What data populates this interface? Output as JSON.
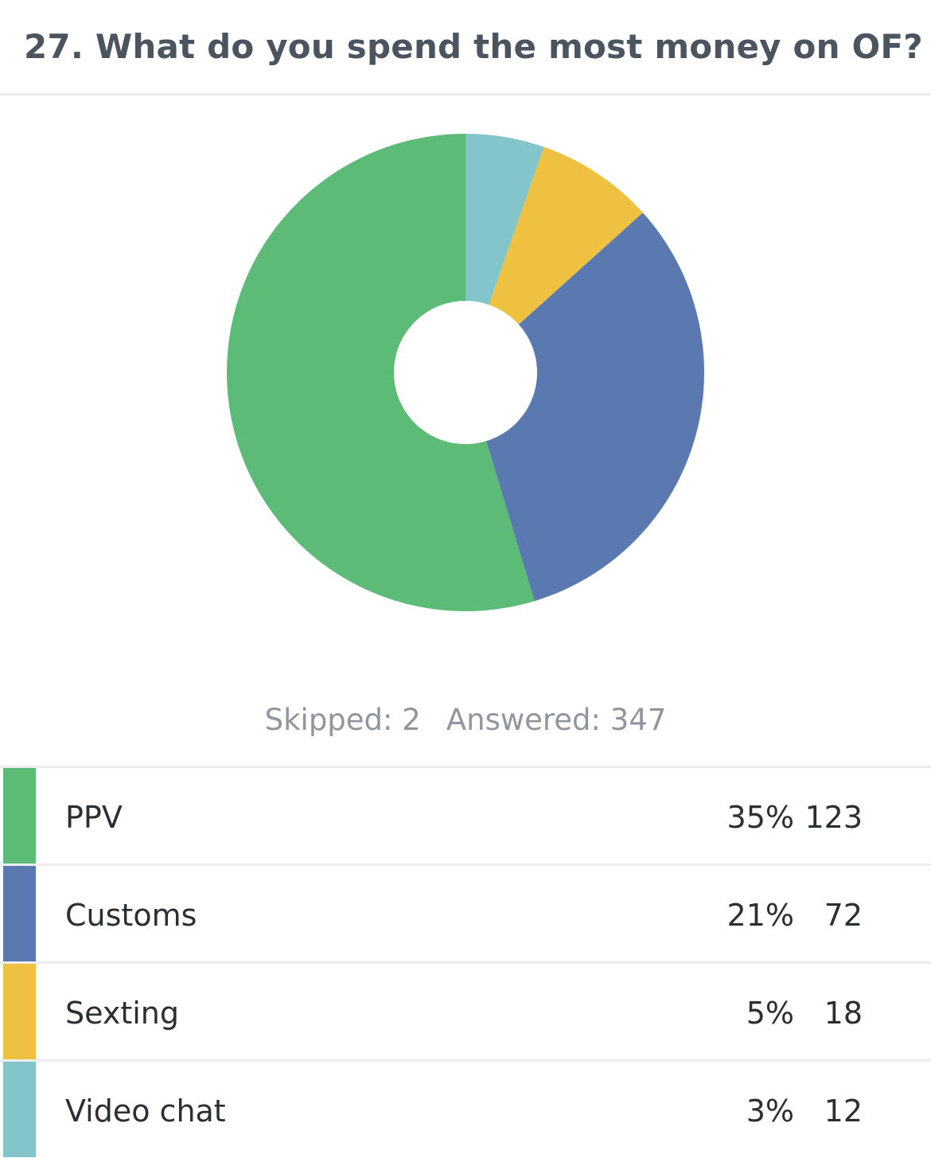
{
  "question": {
    "title": "27. What do you spend the most money on OF?"
  },
  "stats": {
    "skipped_label": "Skipped: 2",
    "answered_label": "Answered: 347"
  },
  "colors": {
    "ppv": "#5bbb77",
    "customs": "#5a79b0",
    "sexting": "#eec141",
    "video_chat": "#83c5ca"
  },
  "chart_data": {
    "type": "pie",
    "categories": [
      "PPV",
      "Customs",
      "Sexting",
      "Video chat"
    ],
    "pie_order": [
      "Video chat",
      "Sexting",
      "Customs",
      "PPV"
    ],
    "pie_values": [
      12,
      18,
      72,
      123
    ],
    "pie_colors": [
      "#83c5ca",
      "#eec141",
      "#5a79b0",
      "#5bbb77"
    ],
    "donut": true
  },
  "legend": [
    {
      "label": "PPV",
      "percent": "35%",
      "count": "123",
      "color": "#5bbb77"
    },
    {
      "label": "Customs",
      "percent": "21%",
      "count": "72",
      "color": "#5a79b0"
    },
    {
      "label": "Sexting",
      "percent": "5%",
      "count": "18",
      "color": "#eec141"
    },
    {
      "label": "Video chat",
      "percent": "3%",
      "count": "12",
      "color": "#83c5ca"
    }
  ]
}
